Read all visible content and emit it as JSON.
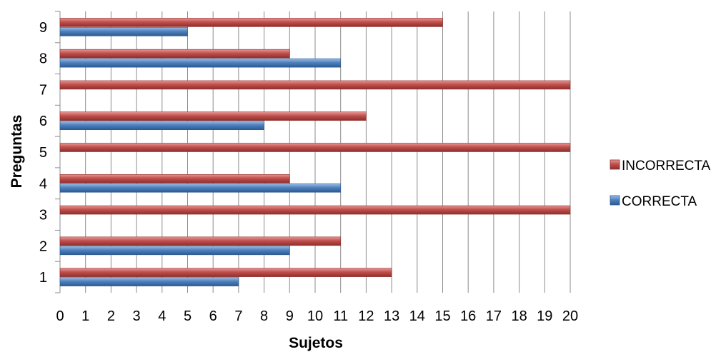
{
  "chart_data": {
    "type": "bar",
    "orientation": "horizontal",
    "categories": [
      "1",
      "2",
      "3",
      "4",
      "5",
      "6",
      "7",
      "8",
      "9"
    ],
    "series": [
      {
        "name": "CORRECTA",
        "color": "#4F81BD",
        "values": [
          7,
          9,
          0,
          11,
          0,
          8,
          0,
          11,
          5
        ]
      },
      {
        "name": "INCORRECTA",
        "color": "#C0504D",
        "values": [
          13,
          11,
          20,
          9,
          20,
          12,
          20,
          9,
          15
        ]
      }
    ],
    "xlabel": "Sujetos",
    "ylabel": "Preguntas",
    "xlim": [
      0,
      20
    ],
    "xticks": [
      0,
      1,
      2,
      3,
      4,
      5,
      6,
      7,
      8,
      9,
      10,
      11,
      12,
      13,
      14,
      15,
      16,
      17,
      18,
      19,
      20
    ],
    "grid": "vertical",
    "legend": {
      "placement": "right",
      "order": [
        "INCORRECTA",
        "CORRECTA"
      ]
    }
  }
}
